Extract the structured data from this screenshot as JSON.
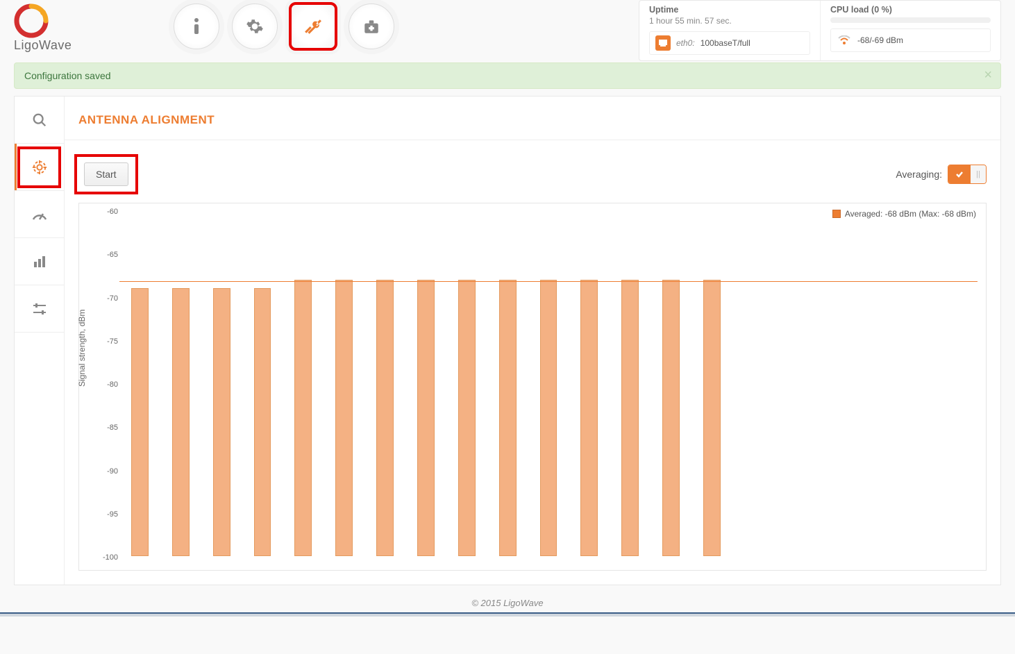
{
  "brand": "LigoWave",
  "nav_highlight_index": 2,
  "stats": {
    "uptime_label": "Uptime",
    "uptime_value": "1 hour 55 min. 57 sec.",
    "cpu_label": "CPU load (0 %)",
    "eth_name": "eth0:",
    "eth_value": "100baseT/full",
    "wifi_value": "-68/-69 dBm"
  },
  "alert_text": "Configuration saved",
  "page_title": "ANTENNA ALIGNMENT",
  "start_label": "Start",
  "averaging_label": "Averaging:",
  "legend_text": "Averaged: -68 dBm (Max: -68 dBm)",
  "footer_text": "© 2015 LigoWave",
  "chart": {
    "type": "bar",
    "ylabel": "Signal strength, dBm",
    "ylim": [
      -100,
      -60
    ],
    "ytick_step": 5,
    "avg_value": -68,
    "values": [
      -69,
      -69,
      -69,
      -69,
      -68,
      -68,
      -68,
      -68,
      -68,
      -68,
      -68,
      -68,
      -68,
      -68,
      -68
    ],
    "bar_count_total": 21,
    "bar_color": "#f4b183",
    "bar_border": "#e49a5e",
    "avg_line_color": "#ed7d31",
    "bar_width_ratio": 0.42
  },
  "colors": {
    "accent": "#ed7d31",
    "highlight": "#e60000",
    "alert_bg": "#dff0d8"
  }
}
